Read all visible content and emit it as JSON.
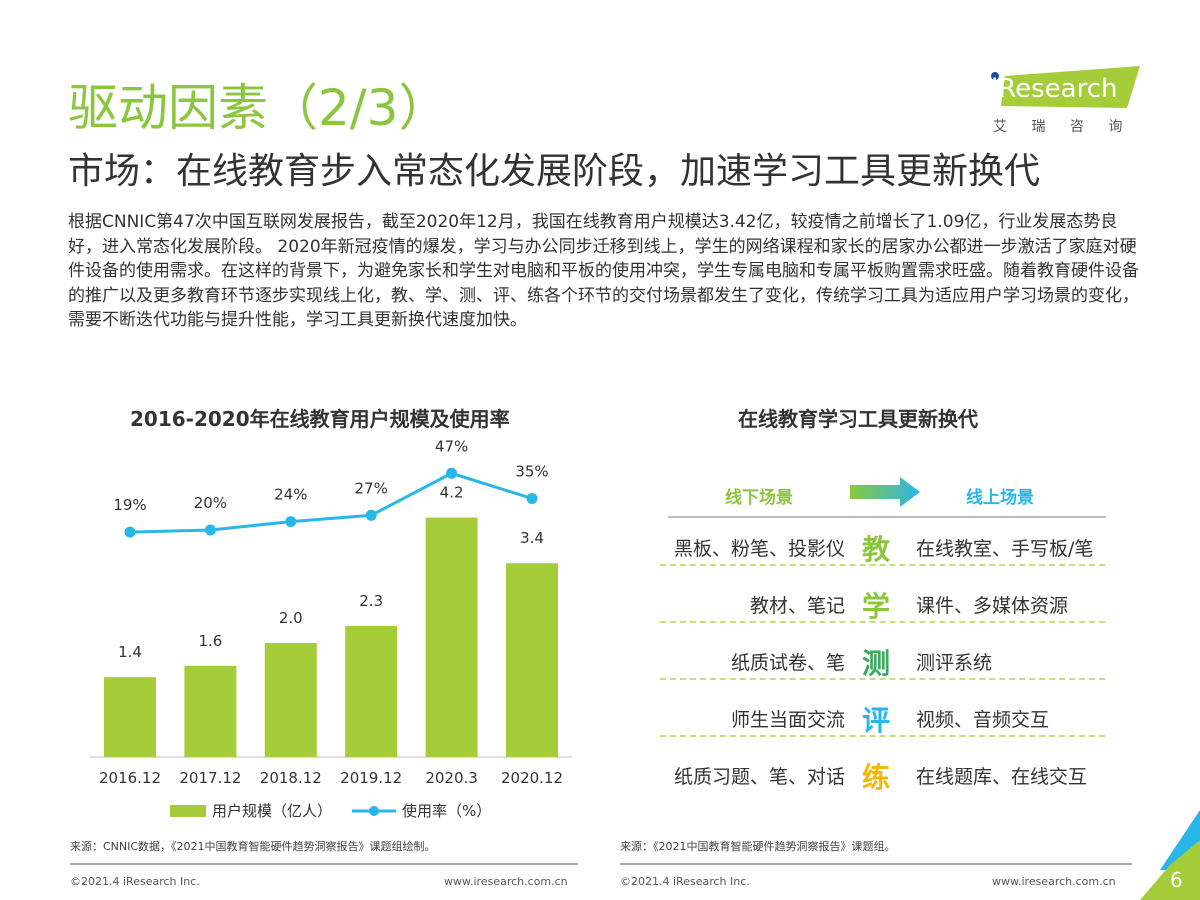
{
  "header": {
    "title": "驱动因素（2/3）",
    "subtitle": "市场：在线教育步入常态化发展阶段，加速学习工具更新换代",
    "logo_text": "iResearch",
    "logo_sub": "艾 瑞 咨 询"
  },
  "body_text": "根据CNNIC第47次中国互联网发展报告，截至2020年12月，我国在线教育用户规模达3.42亿，较疫情之前增长了1.09亿，行业发展态势良好，进入常态化发展阶段。 2020年新冠疫情的爆发，学习与办公同步迁移到线上，学生的网络课程和家长的居家办公都进一步激活了家庭对硬件设备的使用需求。在这样的背景下，为避免家长和学生对电脑和平板的使用冲突，学生专属电脑和专属平板购置需求旺盛。随着教育硬件设备的推广以及更多教育环节逐步实现线上化，教、学、测、评、练各个环节的交付场景都发生了变化，传统学习工具为适应用户学习场景的变化，需要不断迭代功能与提升性能，学习工具更新换代速度加快。",
  "chart_data": {
    "type": "bar+line",
    "title": "2016-2020年在线教育用户规模及使用率",
    "categories": [
      "2016.12",
      "2017.12",
      "2018.12",
      "2019.12",
      "2020.3",
      "2020.12"
    ],
    "series": [
      {
        "name": "用户规模（亿人）",
        "type": "bar",
        "values": [
          1.4,
          1.6,
          2.0,
          2.3,
          4.2,
          3.4
        ],
        "labels": [
          "1.4",
          "1.6",
          "2.0",
          "2.3",
          "4.2",
          "3.4"
        ],
        "color": "#a5cd39"
      },
      {
        "name": "使用率（%）",
        "type": "line",
        "values": [
          19,
          20,
          24,
          27,
          47,
          35
        ],
        "labels": [
          "19%",
          "20%",
          "24%",
          "27%",
          "47%",
          "35%"
        ],
        "color": "#29b6e8"
      }
    ],
    "legend": "bottom",
    "grid": false
  },
  "diagram": {
    "title": "在线教育学习工具更新换代",
    "left_header": "线下场景",
    "right_header": "线上场景",
    "rows": [
      {
        "offline": "黑板、粉笔、投影仪",
        "key": "教",
        "online": "在线教室、手写板/笔",
        "color": "#8cc63f"
      },
      {
        "offline": "教材、笔记",
        "key": "学",
        "online": "课件、多媒体资源",
        "color": "#8cc63f"
      },
      {
        "offline": "纸质试卷、笔",
        "key": "测",
        "online": "测评系统",
        "color": "#3aaa5c"
      },
      {
        "offline": "师生当面交流",
        "key": "评",
        "online": "视频、音频交互",
        "color": "#29b6e8"
      },
      {
        "offline": "纸质习题、笔、对话",
        "key": "练",
        "online": "在线题库、在线交互",
        "color": "#f7b500"
      }
    ]
  },
  "footer": {
    "source_left": "来源：CNNIC数据，《2021中国教育智能硬件趋势洞察报告》课题组绘制。",
    "source_right": "来源：《2021中国教育智能硬件趋势洞察报告》课题组。",
    "copyright": "©2021.4 iResearch Inc.",
    "url": "www.iresearch.com.cn",
    "page": "6"
  }
}
